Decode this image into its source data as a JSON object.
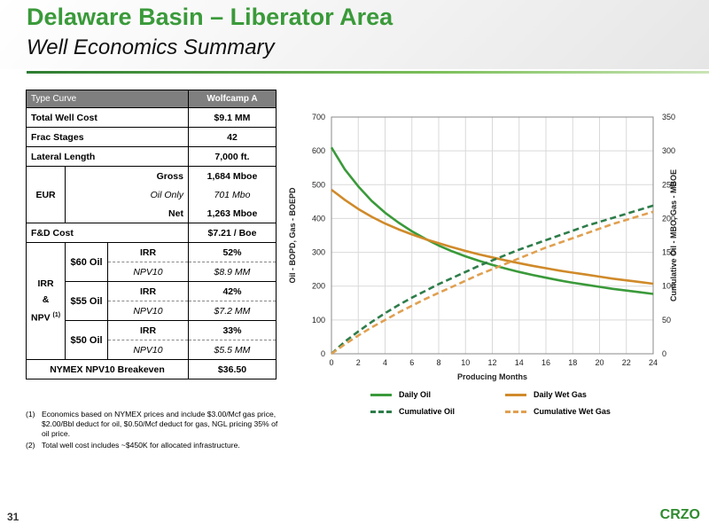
{
  "header": {
    "title": "Delaware Basin – Liberator Area",
    "subtitle": "Well Economics Summary"
  },
  "table": {
    "header": {
      "label": "Type Curve",
      "value": "Wolfcamp A"
    },
    "total_well_cost": {
      "label": "Total Well Cost",
      "value": "$9.1 MM"
    },
    "frac_stages": {
      "label": "Frac Stages",
      "value": "42"
    },
    "lateral_length": {
      "label": "Lateral Length",
      "value": "7,000 ft."
    },
    "eur": {
      "label": "EUR",
      "rows": [
        {
          "label": "Gross",
          "value": "1,684 Mboe"
        },
        {
          "label": "Oil Only",
          "value": "701 Mbo"
        },
        {
          "label": "Net",
          "value": "1,263 Mboe"
        }
      ]
    },
    "fd_cost": {
      "label": "F&D Cost",
      "value": "$7.21 / Boe"
    },
    "irr_npv": {
      "label_line1": "IRR",
      "label_line2": "&",
      "label_line3": "NPV",
      "footnote_ref": "(1)",
      "groups": [
        {
          "price": "$60 Oil",
          "irr_label": "IRR",
          "irr": "52%",
          "npv_label": "NPV10",
          "npv": "$8.9 MM"
        },
        {
          "price": "$55 Oil",
          "irr_label": "IRR",
          "irr": "42%",
          "npv_label": "NPV10",
          "npv": "$7.2 MM"
        },
        {
          "price": "$50 Oil",
          "irr_label": "IRR",
          "irr": "33%",
          "npv_label": "NPV10",
          "npv": "$5.5 MM"
        }
      ]
    },
    "breakeven": {
      "label": "NYMEX NPV10 Breakeven",
      "value": "$36.50"
    }
  },
  "footnotes": [
    {
      "num": "(1)",
      "text": "Economics based on NYMEX prices and include $3.00/Mcf gas price, $2.00/Bbl deduct for oil, $0.50/Mcf deduct for gas, NGL pricing 35% of oil price."
    },
    {
      "num": "(2)",
      "text": "Total well cost includes ~$450K for allocated infrastructure."
    }
  ],
  "colors": {
    "oil": "#3a9a3a",
    "gas": "#d08a2a",
    "cum_oil": "#2e7d4a",
    "cum_gas": "#e0a050",
    "title_green": "#3a9a3a"
  },
  "chart_data": {
    "type": "line",
    "xlabel": "Producing Months",
    "ylabel_left": "Oil - BOPD, Gas - BOEPD",
    "ylabel_right": "Cumulative Oil - MBO, Gas - MBOE",
    "xlim": [
      0,
      24
    ],
    "ylim_left": [
      0,
      700
    ],
    "ylim_right": [
      0,
      350
    ],
    "x_ticks": [
      0,
      2,
      4,
      6,
      8,
      10,
      12,
      14,
      16,
      18,
      20,
      22,
      24
    ],
    "y_left_ticks": [
      0,
      100,
      200,
      300,
      400,
      500,
      600,
      700
    ],
    "y_right_ticks": [
      0,
      50,
      100,
      150,
      200,
      250,
      300,
      350
    ],
    "grid": true,
    "legend_position": "bottom",
    "x": [
      0,
      1,
      2,
      3,
      4,
      5,
      6,
      7,
      8,
      9,
      10,
      11,
      12,
      13,
      14,
      15,
      16,
      17,
      18,
      19,
      20,
      21,
      22,
      23,
      24
    ],
    "series": [
      {
        "name": "Daily Oil",
        "axis": "left",
        "style": "solid",
        "color_key": "oil",
        "values": [
          610,
          545,
          495,
          452,
          417,
          388,
          362,
          340,
          320,
          303,
          288,
          275,
          263,
          252,
          242,
          233,
          225,
          217,
          210,
          204,
          198,
          192,
          187,
          182,
          177
        ]
      },
      {
        "name": "Daily Wet Gas",
        "axis": "left",
        "style": "solid",
        "color_key": "gas",
        "values": [
          485,
          455,
          428,
          405,
          385,
          368,
          353,
          339,
          327,
          315,
          304,
          294,
          285,
          276,
          268,
          260,
          253,
          246,
          240,
          234,
          228,
          222,
          217,
          212,
          207
        ]
      },
      {
        "name": "Cumulative Oil",
        "axis": "right",
        "style": "dashed",
        "color_key": "cum_oil",
        "values": [
          0,
          18,
          33,
          47,
          60,
          72,
          83,
          93,
          103,
          112,
          121,
          130,
          138,
          146,
          154,
          161,
          168,
          175,
          182,
          189,
          195,
          201,
          207,
          213,
          219
        ]
      },
      {
        "name": "Cumulative Wet Gas",
        "axis": "right",
        "style": "dashed",
        "color_key": "cum_gas",
        "values": [
          0,
          14,
          27,
          39,
          50,
          61,
          71,
          81,
          90,
          99,
          108,
          117,
          125,
          133,
          141,
          149,
          157,
          164,
          171,
          178,
          185,
          192,
          198,
          204,
          210
        ]
      }
    ]
  },
  "footer": {
    "page_number": "31",
    "brand": "CRZO"
  }
}
